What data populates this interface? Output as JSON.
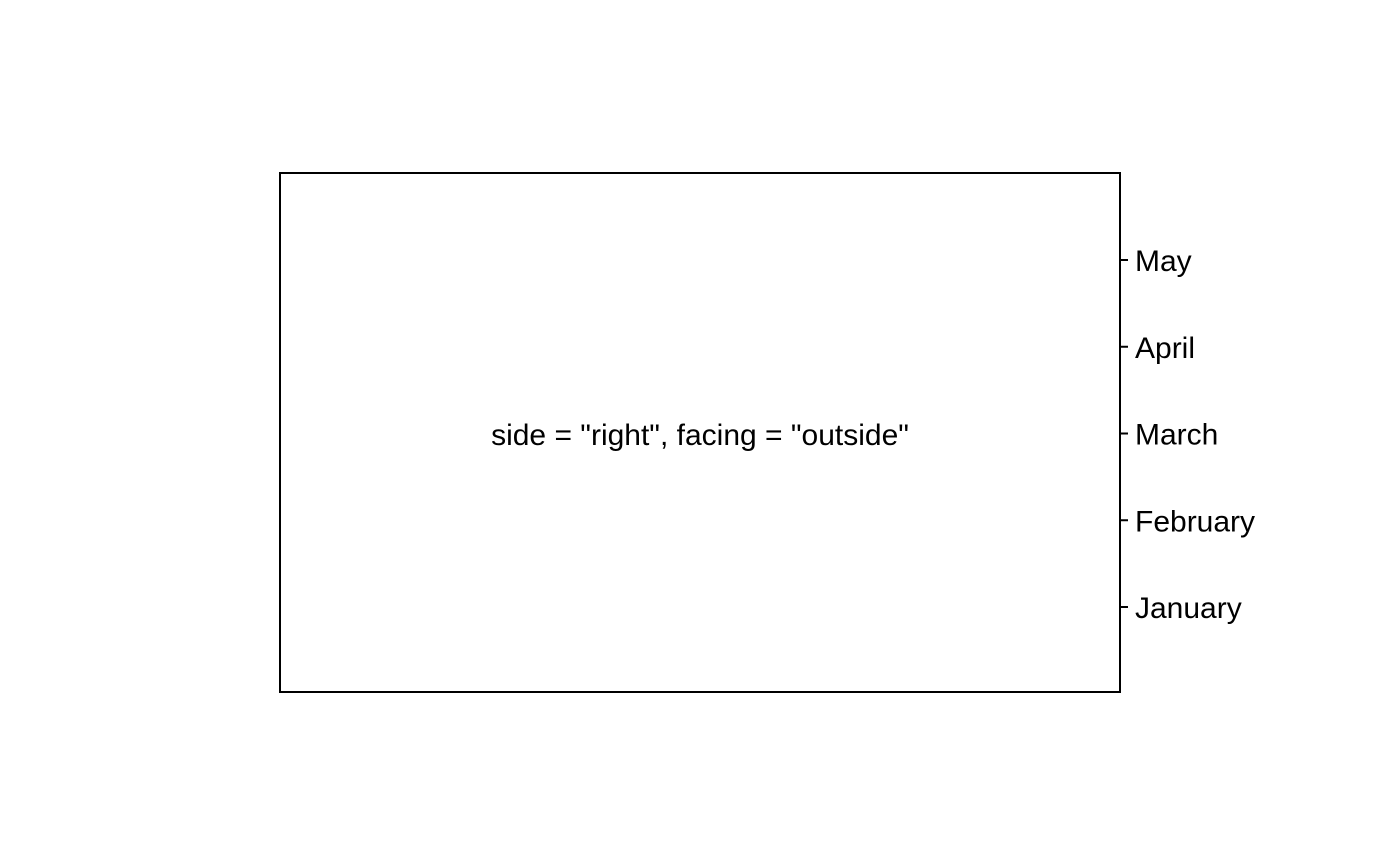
{
  "chart_data": {
    "type": "line",
    "title": "",
    "xlabel": "",
    "ylabel": "",
    "axis_side": "right",
    "tick_facing": "outside",
    "y_categories": [
      "January",
      "February",
      "March",
      "April",
      "May"
    ],
    "annotation": "side = \"right\", facing = \"outside\"",
    "grid": false,
    "series": []
  }
}
